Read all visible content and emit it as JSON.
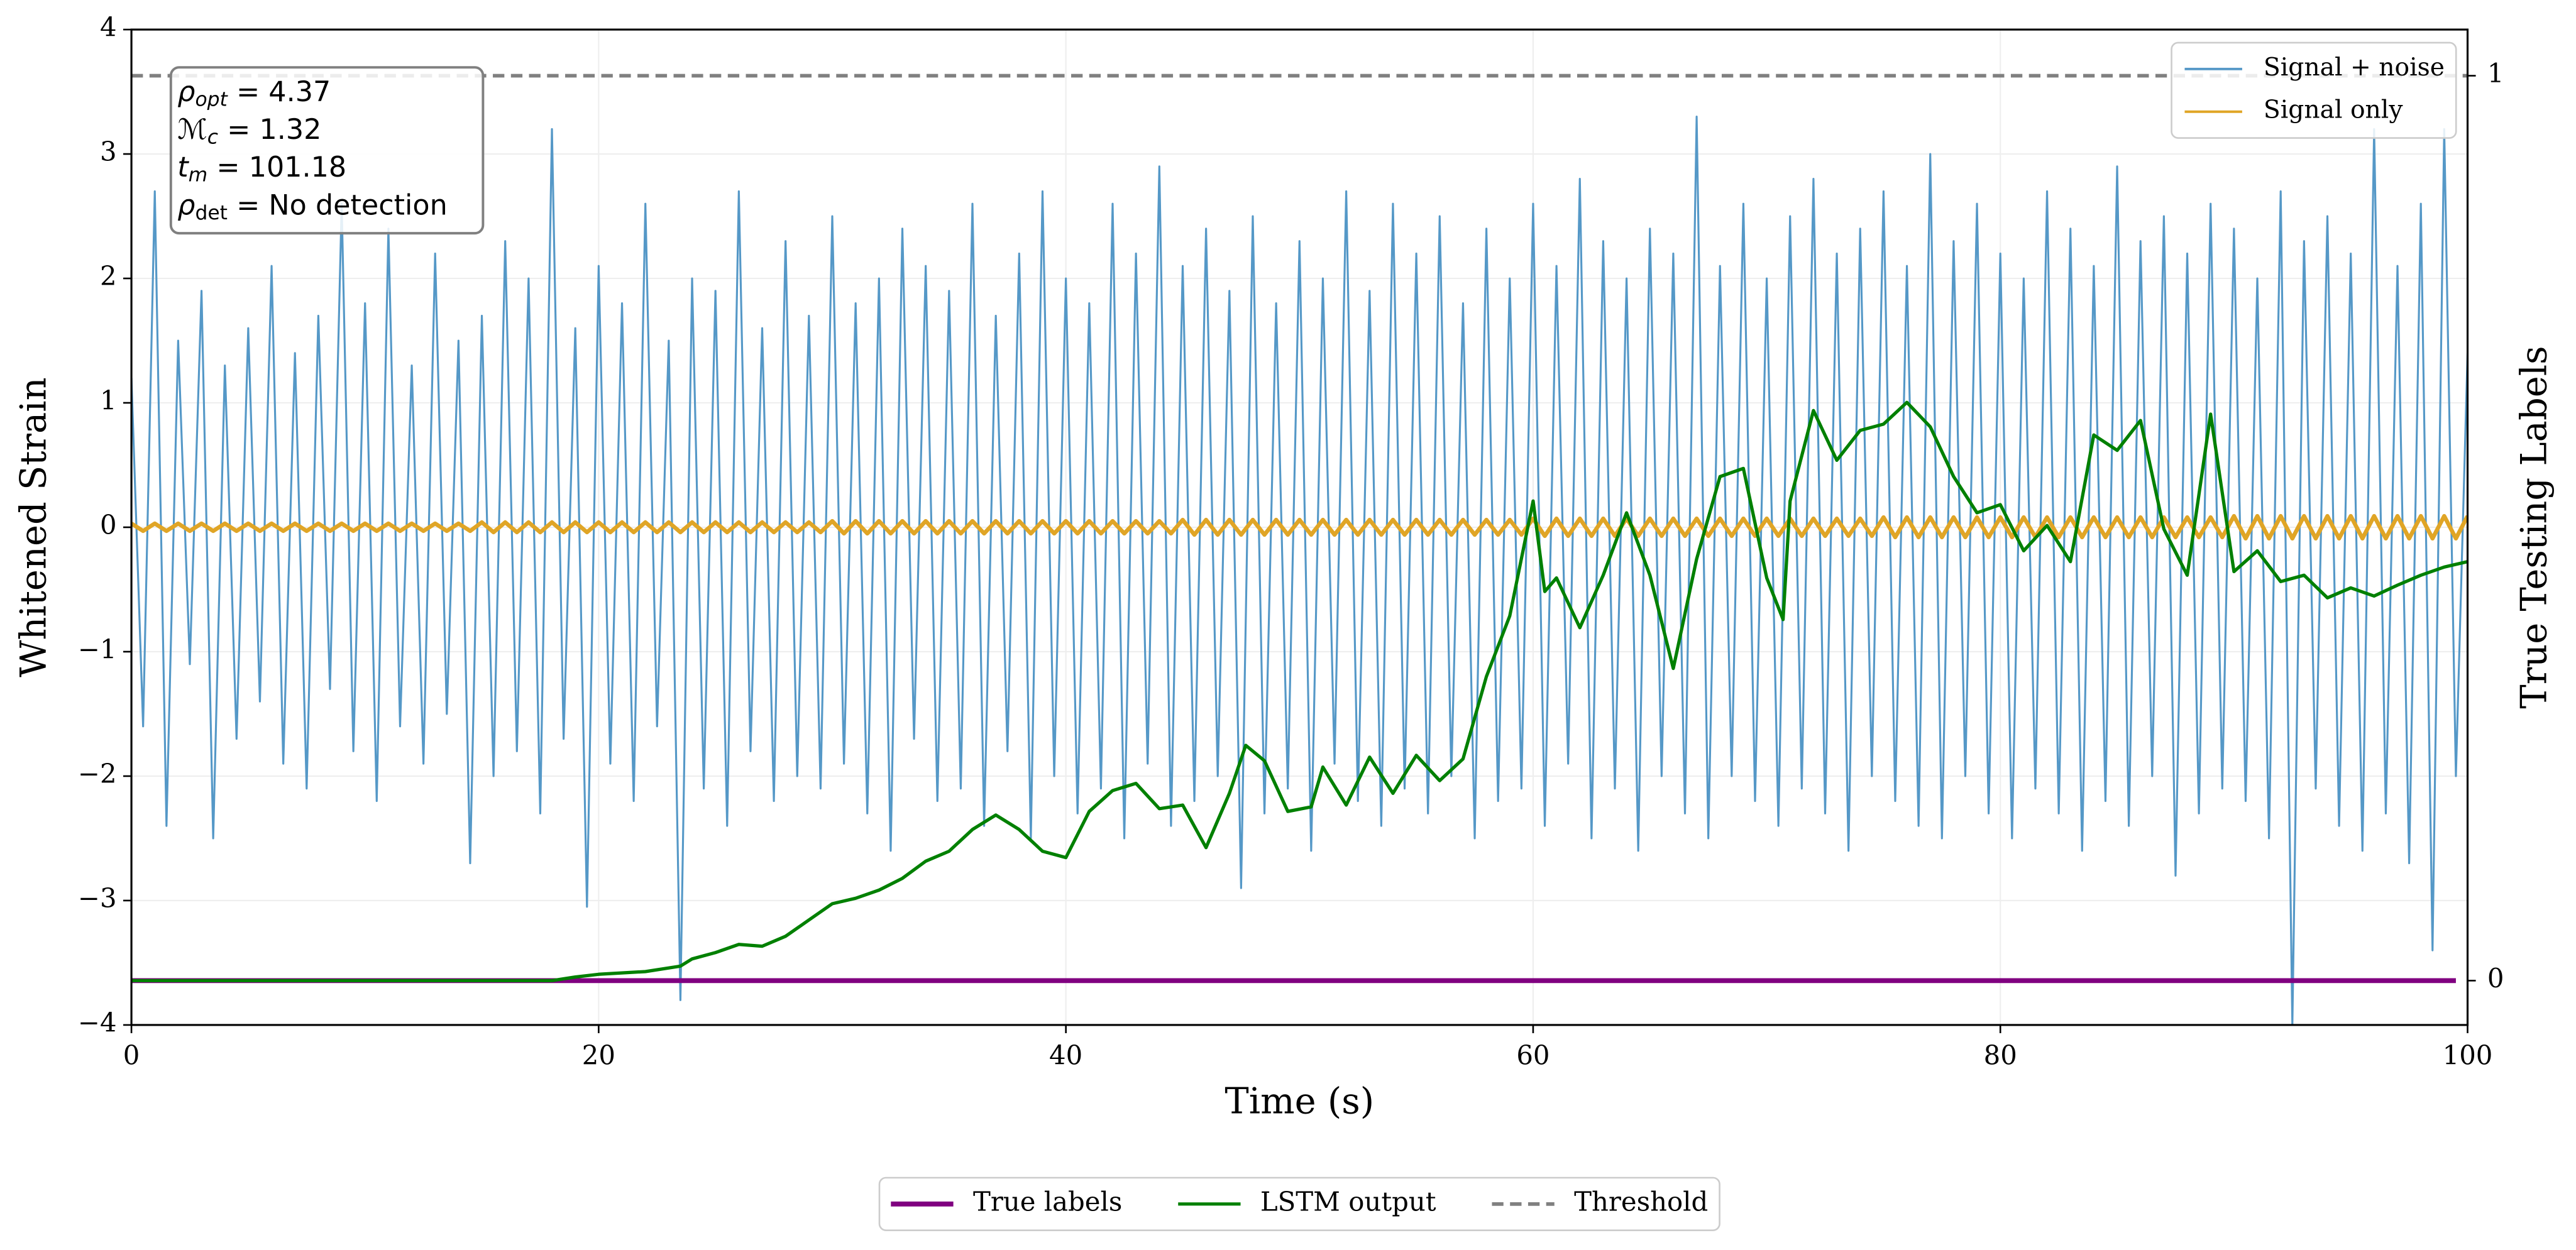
{
  "chart_data": {
    "type": "line",
    "xlabel": "Time (s)",
    "ylabel": "Whitened Strain",
    "y2label": "True Testing Labels",
    "xlim": [
      0,
      100
    ],
    "ylim": [
      -4,
      4
    ],
    "y2lim": [
      -0.049,
      1.051
    ],
    "xticks": [
      0,
      20,
      40,
      60,
      80,
      100
    ],
    "yticks": [
      {
        "value": -4,
        "label": "−4"
      },
      {
        "value": -3,
        "label": "−3"
      },
      {
        "value": -2,
        "label": "−2"
      },
      {
        "value": -1,
        "label": "−1"
      },
      0,
      1,
      2,
      3,
      4
    ],
    "y2ticks": [
      0,
      1
    ],
    "grid": true,
    "x": [
      0,
      0.5,
      1,
      1.5,
      2,
      2.5,
      3,
      3.5,
      4,
      4.5,
      5,
      5.5,
      6,
      6.5,
      7,
      7.5,
      8,
      8.5,
      9,
      9.5,
      10,
      10.5,
      11,
      11.5,
      12,
      12.5,
      13,
      13.5,
      14,
      14.5,
      15,
      15.5,
      16,
      16.5,
      17,
      17.5,
      18,
      18.5,
      19,
      19.5,
      20,
      20.5,
      21,
      21.5,
      22,
      22.5,
      23,
      23.5,
      24,
      24.5,
      25,
      25.5,
      26,
      26.5,
      27,
      27.5,
      28,
      28.5,
      29,
      29.5,
      30,
      30.5,
      31,
      31.5,
      32,
      32.5,
      33,
      33.5,
      34,
      34.5,
      35,
      35.5,
      36,
      36.5,
      37,
      37.5,
      38,
      38.5,
      39,
      39.5,
      40,
      40.5,
      41,
      41.5,
      42,
      42.5,
      43,
      43.5,
      44,
      44.5,
      45,
      45.5,
      46,
      46.5,
      47,
      47.5,
      48,
      48.5,
      49,
      49.5,
      50,
      50.5,
      51,
      51.5,
      52,
      52.5,
      53,
      53.5,
      54,
      54.5,
      55,
      55.5,
      56,
      56.5,
      57,
      57.5,
      58,
      58.5,
      59,
      59.5,
      60,
      60.5,
      61,
      61.5,
      62,
      62.5,
      63,
      63.5,
      64,
      64.5,
      65,
      65.5,
      66,
      66.5,
      67,
      67.5,
      68,
      68.5,
      69,
      69.5,
      70,
      70.5,
      71,
      71.5,
      72,
      72.5,
      73,
      73.5,
      74,
      74.5,
      75,
      75.5,
      76,
      76.5,
      77,
      77.5,
      78,
      78.5,
      79,
      79.5,
      80,
      80.5,
      81,
      81.5,
      82,
      82.5,
      83,
      83.5,
      84,
      84.5,
      85,
      85.5,
      86,
      86.5,
      87,
      87.5,
      88,
      88.5,
      89,
      89.5,
      90,
      90.5,
      91,
      91.5,
      92,
      92.5,
      93,
      93.5,
      94,
      94.5,
      95,
      95.5,
      96,
      96.5,
      97,
      97.5,
      98,
      98.5,
      99,
      99.5,
      100
    ],
    "series": [
      {
        "name": "Signal + noise",
        "color": "#5598c7",
        "legend": "upper right",
        "width": 1.2,
        "values": [
          1.2,
          -1.6,
          2.7,
          -2.4,
          1.5,
          -1.1,
          1.9,
          -2.5,
          1.3,
          -1.7,
          1.6,
          -1.4,
          2.1,
          -1.9,
          1.4,
          -2.1,
          1.7,
          -1.3,
          2.6,
          -1.8,
          1.8,
          -2.2,
          2.4,
          -1.6,
          1.3,
          -1.9,
          2.2,
          -1.5,
          1.5,
          -2.7,
          1.7,
          -2.0,
          2.3,
          -1.8,
          2.0,
          -2.3,
          3.2,
          -1.7,
          1.6,
          -3.05,
          2.1,
          -1.9,
          1.8,
          -2.2,
          2.6,
          -1.6,
          1.5,
          -3.8,
          2.0,
          -2.1,
          1.9,
          -2.4,
          2.7,
          -1.8,
          1.6,
          -2.2,
          2.3,
          -2.0,
          1.7,
          -2.1,
          2.5,
          -1.9,
          1.8,
          -2.3,
          2.0,
          -2.6,
          2.4,
          -1.7,
          2.1,
          -2.2,
          1.9,
          -2.1,
          2.6,
          -2.4,
          1.7,
          -1.8,
          2.2,
          -2.5,
          2.7,
          -2.0,
          2.0,
          -2.3,
          1.8,
          -2.1,
          2.6,
          -2.5,
          2.2,
          -1.9,
          2.9,
          -2.4,
          2.1,
          -2.2,
          2.4,
          -2.0,
          1.9,
          -2.9,
          2.5,
          -2.3,
          1.8,
          -2.1,
          2.3,
          -2.6,
          2.0,
          -1.9,
          2.7,
          -2.2,
          1.9,
          -2.4,
          2.6,
          -2.1,
          2.2,
          -2.3,
          2.5,
          -2.0,
          1.8,
          -2.5,
          2.4,
          -2.2,
          2.0,
          -2.1,
          2.6,
          -2.4,
          2.1,
          -1.9,
          2.8,
          -2.5,
          2.3,
          -2.1,
          2.0,
          -2.6,
          2.4,
          -2.0,
          2.2,
          -2.3,
          3.3,
          -2.5,
          2.1,
          -2.0,
          2.6,
          -2.2,
          2.0,
          -2.4,
          2.5,
          -2.1,
          2.8,
          -2.3,
          2.2,
          -2.6,
          2.4,
          -2.0,
          2.7,
          -2.2,
          2.1,
          -2.4,
          3.0,
          -2.5,
          2.3,
          -2.0,
          2.6,
          -2.3,
          2.2,
          -2.5,
          2.0,
          -2.1,
          2.7,
          -2.3,
          2.4,
          -2.6,
          2.1,
          -2.2,
          2.9,
          -2.4,
          2.3,
          -2.0,
          2.5,
          -2.8,
          2.2,
          -2.3,
          2.6,
          -2.1,
          2.4,
          -2.2,
          2.0,
          -2.5,
          2.7,
          -4.0,
          2.3,
          -2.1,
          2.5,
          -2.4,
          2.2,
          -2.6,
          3.2,
          -2.3,
          2.1,
          -2.7,
          2.6,
          -3.4,
          3.2,
          -2.0,
          1.4
        ]
      },
      {
        "name": "Signal only",
        "color": "#e0a526",
        "legend": "upper right",
        "width": 2.5,
        "values": [
          0.03,
          -0.03,
          0.03,
          -0.03,
          0.03,
          -0.03,
          0.03,
          -0.03,
          0.03,
          -0.03,
          0.03,
          -0.03,
          0.03,
          -0.03,
          0.03,
          -0.03,
          0.03,
          -0.03,
          0.03,
          -0.03,
          0.03,
          -0.03,
          0.03,
          -0.03,
          0.03,
          -0.03,
          0.03,
          -0.03,
          0.03,
          -0.03,
          0.04,
          -0.04,
          0.04,
          -0.04,
          0.04,
          -0.04,
          0.04,
          -0.04,
          0.04,
          -0.04,
          0.04,
          -0.04,
          0.04,
          -0.04,
          0.04,
          -0.04,
          0.04,
          -0.04,
          0.04,
          -0.04,
          0.04,
          -0.04,
          0.04,
          -0.04,
          0.04,
          -0.04,
          0.04,
          -0.04,
          0.04,
          -0.04,
          0.05,
          -0.05,
          0.05,
          -0.05,
          0.05,
          -0.05,
          0.05,
          -0.05,
          0.05,
          -0.05,
          0.05,
          -0.05,
          0.05,
          -0.05,
          0.05,
          -0.05,
          0.05,
          -0.05,
          0.05,
          -0.05,
          0.05,
          -0.05,
          0.05,
          -0.05,
          0.05,
          -0.05,
          0.05,
          -0.05,
          0.05,
          -0.05,
          0.06,
          -0.06,
          0.06,
          -0.06,
          0.06,
          -0.06,
          0.06,
          -0.06,
          0.06,
          -0.06,
          0.06,
          -0.06,
          0.06,
          -0.06,
          0.06,
          -0.06,
          0.06,
          -0.06,
          0.06,
          -0.06,
          0.06,
          -0.06,
          0.06,
          -0.06,
          0.06,
          -0.06,
          0.06,
          -0.06,
          0.06,
          -0.06,
          0.07,
          -0.07,
          0.07,
          -0.07,
          0.07,
          -0.07,
          0.07,
          -0.07,
          0.07,
          -0.07,
          0.07,
          -0.07,
          0.07,
          -0.07,
          0.07,
          -0.07,
          0.07,
          -0.07,
          0.07,
          -0.07,
          0.07,
          -0.07,
          0.07,
          -0.07,
          0.07,
          -0.07,
          0.07,
          -0.07,
          0.07,
          -0.07,
          0.08,
          -0.08,
          0.08,
          -0.08,
          0.08,
          -0.08,
          0.08,
          -0.08,
          0.08,
          -0.08,
          0.08,
          -0.08,
          0.08,
          -0.08,
          0.08,
          -0.08,
          0.08,
          -0.08,
          0.08,
          -0.08,
          0.08,
          -0.08,
          0.08,
          -0.08,
          0.08,
          -0.08,
          0.08,
          -0.08,
          0.08,
          -0.08,
          0.09,
          -0.09,
          0.09,
          -0.09,
          0.09,
          -0.09,
          0.09,
          -0.09,
          0.09,
          -0.09,
          0.09,
          -0.09,
          0.09,
          -0.09,
          0.09,
          -0.09,
          0.09,
          -0.09,
          0.09,
          -0.09,
          0.09
        ]
      },
      {
        "name": "True labels",
        "color": "#800080",
        "legend": "lower center",
        "axis": "y2",
        "width": 3,
        "x": [
          0,
          99.5
        ],
        "values": [
          0,
          0
        ]
      },
      {
        "name": "LSTM output",
        "color": "#008000",
        "legend": "lower center",
        "axis": "y2",
        "width": 2,
        "x": [
          0,
          5,
          10,
          15,
          18,
          19,
          20,
          22,
          23.5,
          24,
          25,
          26,
          27,
          28,
          29,
          30,
          31,
          32,
          33,
          34,
          35,
          36,
          37,
          38,
          39,
          40,
          41,
          42,
          43,
          44,
          45,
          46,
          47,
          47.7,
          48.5,
          49.5,
          50.5,
          51,
          52,
          53,
          54,
          55,
          56,
          57,
          58,
          59,
          60,
          60.5,
          61,
          62,
          63,
          64,
          65,
          66,
          67,
          68,
          69,
          70,
          70.7,
          71,
          72,
          73,
          74,
          75,
          76,
          77,
          78,
          79,
          80,
          81,
          82,
          83,
          84,
          85,
          86,
          87,
          88,
          89,
          90,
          91,
          92,
          93,
          94,
          95,
          96,
          97,
          98,
          99,
          100
        ],
        "values": [
          0,
          0,
          0,
          0,
          0,
          0.004,
          0.007,
          0.01,
          0.016,
          0.024,
          0.031,
          0.04,
          0.038,
          0.049,
          0.067,
          0.085,
          0.091,
          0.1,
          0.113,
          0.132,
          0.143,
          0.167,
          0.183,
          0.167,
          0.143,
          0.136,
          0.187,
          0.21,
          0.218,
          0.19,
          0.194,
          0.147,
          0.207,
          0.26,
          0.243,
          0.187,
          0.192,
          0.236,
          0.194,
          0.247,
          0.207,
          0.249,
          0.221,
          0.245,
          0.336,
          0.403,
          0.53,
          0.43,
          0.445,
          0.39,
          0.448,
          0.517,
          0.448,
          0.345,
          0.466,
          0.557,
          0.566,
          0.445,
          0.399,
          0.53,
          0.63,
          0.575,
          0.608,
          0.615,
          0.639,
          0.612,
          0.557,
          0.517,
          0.526,
          0.475,
          0.503,
          0.463,
          0.603,
          0.586,
          0.619,
          0.499,
          0.448,
          0.626,
          0.452,
          0.475,
          0.441,
          0.448,
          0.423,
          0.434,
          0.425,
          0.437,
          0.448,
          0.457,
          0.463
        ]
      }
    ],
    "threshold": {
      "name": "Threshold",
      "value": 1,
      "axis": "y2",
      "color": "#808080",
      "legend": "lower center"
    },
    "annotations": [
      {
        "symbol": "ρ",
        "sub": "opt",
        "text": " = 4.37"
      },
      {
        "symbol": "ℳ",
        "sub": "c",
        "text": " = 1.32"
      },
      {
        "symbol": "t",
        "sub": "m",
        "text": " = 101.18"
      },
      {
        "symbol": "ρ",
        "sub": "det",
        "text": " = No detection"
      }
    ]
  }
}
